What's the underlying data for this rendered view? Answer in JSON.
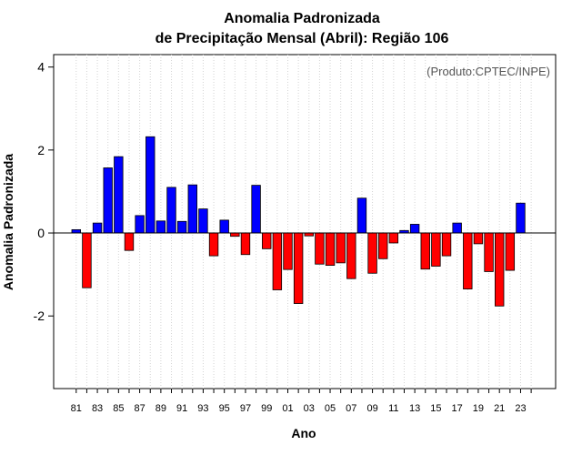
{
  "chart_data": {
    "type": "bar",
    "title_line1": "Anomalia Padronizada",
    "title_line2": "de Precipitação Mensal (Abril): Região 106",
    "xlabel": "Ano",
    "ylabel": "Anomalia Padronizada",
    "credit": "(Produto:CPTEC/INPE)",
    "ylim": [
      -3.75,
      4.3
    ],
    "yticks": [
      -2,
      0,
      2,
      4
    ],
    "ytick_labels": [
      "-2",
      "0",
      "2",
      "4"
    ],
    "tick_labels": [
      "81",
      "83",
      "85",
      "87",
      "89",
      "91",
      "93",
      "95",
      "97",
      "99",
      "01",
      "03",
      "05",
      "07",
      "09",
      "11",
      "13",
      "15",
      "17",
      "19",
      "21",
      "23"
    ],
    "positive_color": "#0000ff",
    "negative_color": "#ff0000",
    "categories": [
      "1981",
      "1982",
      "1983",
      "1984",
      "1985",
      "1986",
      "1987",
      "1988",
      "1989",
      "1990",
      "1991",
      "1992",
      "1993",
      "1994",
      "1995",
      "1996",
      "1997",
      "1998",
      "1999",
      "2000",
      "2001",
      "2002",
      "2003",
      "2004",
      "2005",
      "2006",
      "2007",
      "2008",
      "2009",
      "2010",
      "2011",
      "2012",
      "2013",
      "2014",
      "2015",
      "2016",
      "2017",
      "2018",
      "2019",
      "2020",
      "2021",
      "2022",
      "2023",
      "2024"
    ],
    "values": [
      0.08,
      -1.32,
      0.24,
      1.57,
      1.84,
      -0.42,
      0.42,
      2.32,
      0.29,
      1.1,
      0.28,
      1.16,
      0.58,
      -0.55,
      0.31,
      -0.08,
      -0.52,
      1.15,
      -0.38,
      -1.37,
      -0.88,
      -1.7,
      -0.07,
      -0.75,
      -0.78,
      -0.72,
      -1.1,
      0.84,
      -0.97,
      -0.62,
      -0.24,
      0.06,
      0.21,
      -0.87,
      -0.8,
      -0.55,
      0.24,
      -1.35,
      -0.26,
      -0.93,
      -1.76,
      -0.9,
      0.72,
      0.0
    ]
  }
}
